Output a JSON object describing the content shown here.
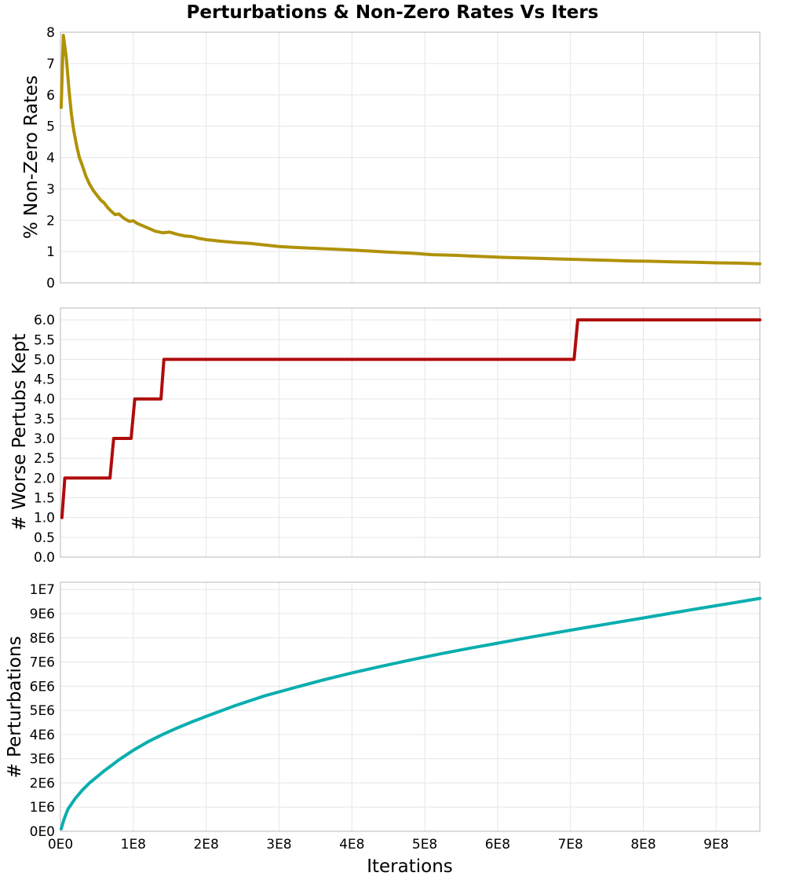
{
  "figure": {
    "title": "Perturbations & Non-Zero Rates Vs Iters"
  },
  "chart_data": [
    {
      "type": "line",
      "title": "",
      "ylabel": "% Non-Zero Rates",
      "xlabel": "",
      "xlim": [
        0,
        960000000
      ],
      "ylim": [
        0,
        8
      ],
      "xticks": [
        0,
        100000000,
        200000000,
        300000000,
        400000000,
        500000000,
        600000000,
        700000000,
        800000000,
        900000000
      ],
      "xtick_labels": [],
      "yticks": [
        0,
        1,
        2,
        3,
        4,
        5,
        6,
        7,
        8
      ],
      "ytick_labels": [
        "0",
        "1",
        "2",
        "3",
        "4",
        "5",
        "6",
        "7",
        "8"
      ],
      "grid": true,
      "color": "#b09208",
      "series": [
        {
          "name": "% Non-Zero Rates",
          "x": [
            1000000,
            4000000,
            8000000,
            12000000,
            15000000,
            18000000,
            22000000,
            26000000,
            30000000,
            35000000,
            40000000,
            45000000,
            50000000,
            55000000,
            60000000,
            65000000,
            70000000,
            75000000,
            80000000,
            85000000,
            90000000,
            95000000,
            100000000,
            105000000,
            110000000,
            120000000,
            130000000,
            140000000,
            150000000,
            160000000,
            170000000,
            180000000,
            190000000,
            200000000,
            220000000,
            240000000,
            260000000,
            280000000,
            300000000,
            330000000,
            360000000,
            390000000,
            420000000,
            450000000,
            480000000,
            510000000,
            540000000,
            570000000,
            600000000,
            630000000,
            660000000,
            690000000,
            720000000,
            750000000,
            780000000,
            810000000,
            840000000,
            870000000,
            900000000,
            930000000,
            960000000
          ],
          "y": [
            5.6,
            7.9,
            7.2,
            6.1,
            5.4,
            4.9,
            4.4,
            4.0,
            3.75,
            3.4,
            3.15,
            2.95,
            2.8,
            2.65,
            2.55,
            2.4,
            2.28,
            2.18,
            2.2,
            2.1,
            2.02,
            1.96,
            1.98,
            1.9,
            1.85,
            1.75,
            1.65,
            1.6,
            1.62,
            1.55,
            1.5,
            1.48,
            1.42,
            1.38,
            1.33,
            1.29,
            1.26,
            1.21,
            1.16,
            1.12,
            1.09,
            1.06,
            1.02,
            0.98,
            0.95,
            0.9,
            0.88,
            0.85,
            0.82,
            0.8,
            0.78,
            0.76,
            0.74,
            0.72,
            0.7,
            0.69,
            0.67,
            0.66,
            0.64,
            0.63,
            0.61
          ]
        }
      ]
    },
    {
      "type": "line",
      "title": "",
      "ylabel": "# Worse Pertubs Kept",
      "xlabel": "",
      "xlim": [
        0,
        960000000
      ],
      "ylim": [
        0,
        6.3
      ],
      "xticks": [
        0,
        100000000,
        200000000,
        300000000,
        400000000,
        500000000,
        600000000,
        700000000,
        800000000,
        900000000
      ],
      "xtick_labels": [],
      "yticks": [
        0,
        0.5,
        1,
        1.5,
        2,
        2.5,
        3,
        3.5,
        4,
        4.5,
        5,
        5.5,
        6
      ],
      "ytick_labels": [
        "0.0",
        "0.5",
        "1.0",
        "1.5",
        "2.0",
        "2.5",
        "3.0",
        "3.5",
        "4.0",
        "4.5",
        "5.0",
        "5.5",
        "6.0"
      ],
      "grid": true,
      "color": "#b00c0c",
      "series": [
        {
          "name": "# Worse Pertubs Kept",
          "x": [
            2000000,
            6000000,
            68000000,
            73000000,
            97000000,
            102000000,
            138000000,
            142000000,
            705000000,
            710000000,
            960000000
          ],
          "y": [
            1,
            2,
            2,
            3,
            3,
            4,
            4,
            5,
            5,
            6,
            6
          ]
        }
      ]
    },
    {
      "type": "line",
      "title": "",
      "ylabel": "# Perturbations",
      "xlabel": "Iterations",
      "xlim": [
        0,
        960000000
      ],
      "ylim": [
        0,
        10300000
      ],
      "xticks": [
        0,
        100000000,
        200000000,
        300000000,
        400000000,
        500000000,
        600000000,
        700000000,
        800000000,
        900000000
      ],
      "xtick_labels": [
        "0E0",
        "1E8",
        "2E8",
        "3E8",
        "4E8",
        "5E8",
        "6E8",
        "7E8",
        "8E8",
        "9E8"
      ],
      "yticks": [
        0,
        1000000,
        2000000,
        3000000,
        4000000,
        5000000,
        6000000,
        7000000,
        8000000,
        9000000,
        10000000
      ],
      "ytick_labels": [
        "0E0",
        "1E6",
        "2E6",
        "3E6",
        "4E6",
        "5E6",
        "6E6",
        "7E6",
        "8E6",
        "9E6",
        "1E7"
      ],
      "grid": true,
      "color": "#0aaeae",
      "series": [
        {
          "name": "# Perturbations",
          "x": [
            1000000,
            5000000,
            10000000,
            20000000,
            30000000,
            40000000,
            50000000,
            60000000,
            70000000,
            80000000,
            90000000,
            100000000,
            120000000,
            140000000,
            160000000,
            180000000,
            200000000,
            240000000,
            280000000,
            320000000,
            360000000,
            400000000,
            440000000,
            480000000,
            520000000,
            560000000,
            600000000,
            640000000,
            680000000,
            720000000,
            760000000,
            800000000,
            840000000,
            880000000,
            920000000,
            960000000
          ],
          "y": [
            100000,
            500000,
            900000,
            1350000,
            1700000,
            2000000,
            2250000,
            2500000,
            2720000,
            2950000,
            3150000,
            3350000,
            3700000,
            4000000,
            4270000,
            4520000,
            4750000,
            5200000,
            5600000,
            5930000,
            6250000,
            6550000,
            6820000,
            7080000,
            7330000,
            7560000,
            7780000,
            8000000,
            8210000,
            8420000,
            8620000,
            8820000,
            9030000,
            9230000,
            9430000,
            9630000
          ]
        }
      ]
    }
  ]
}
